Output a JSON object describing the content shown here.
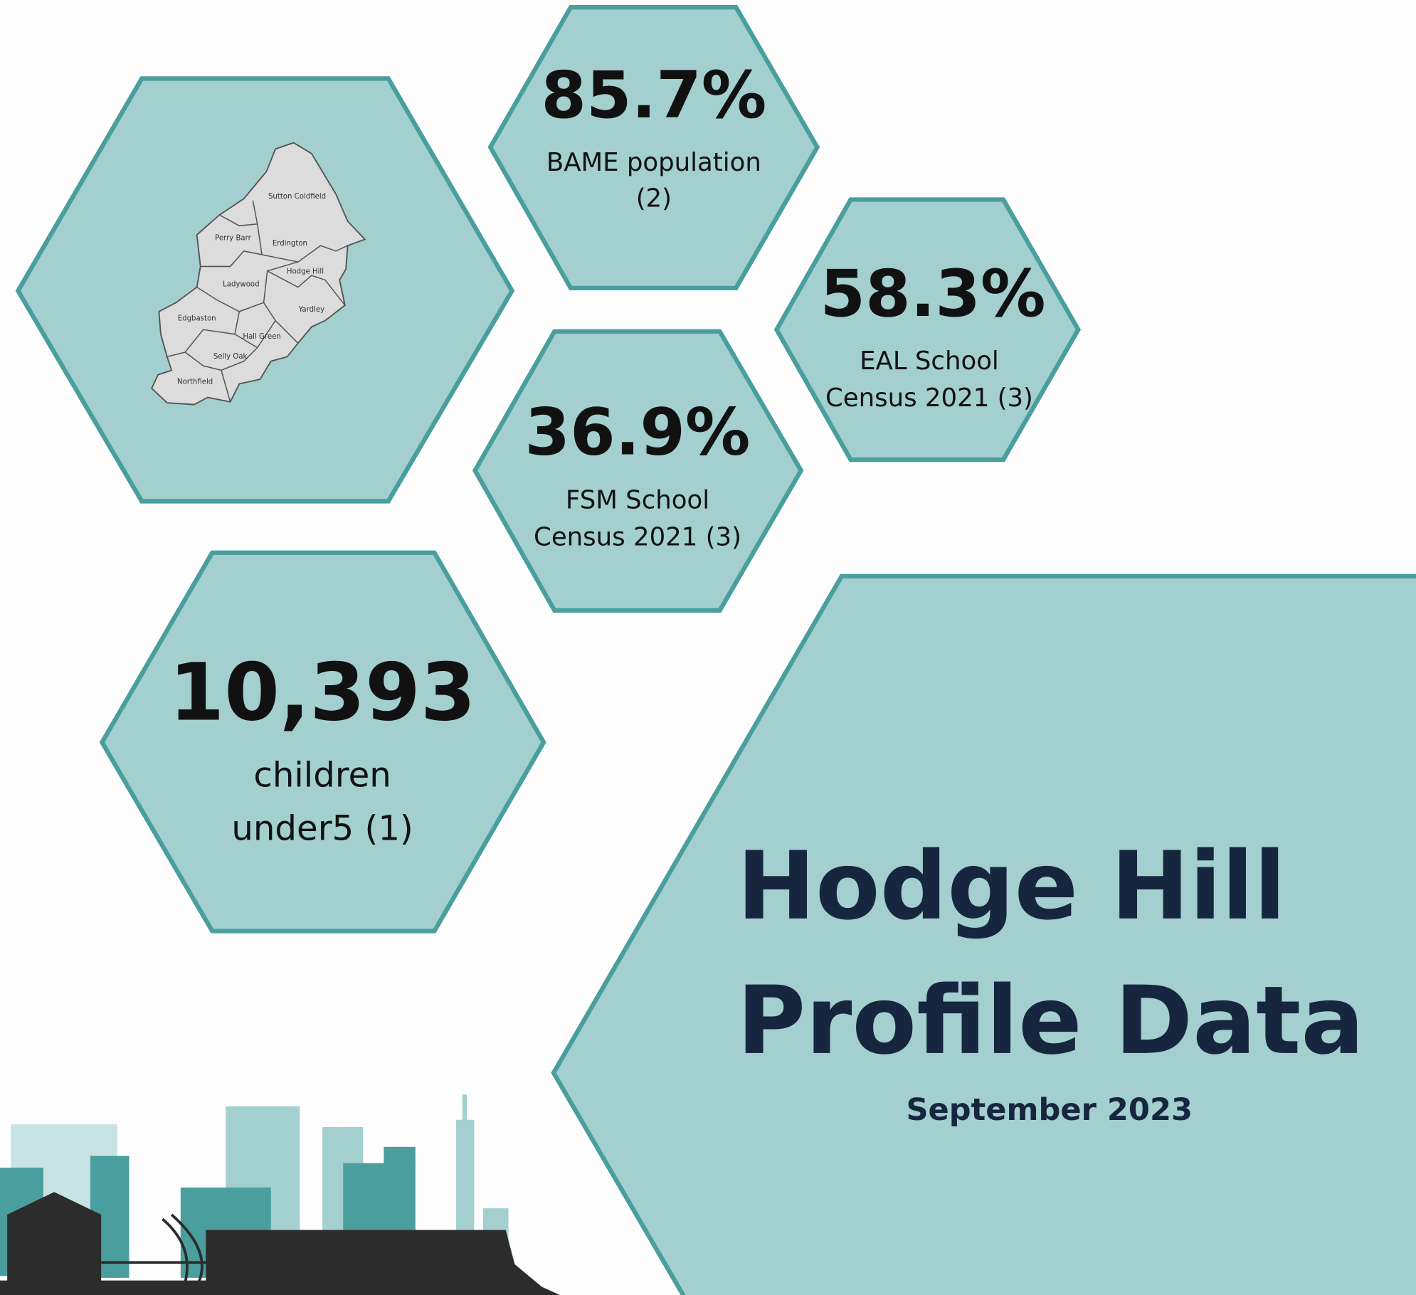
{
  "stats": [
    {
      "value": "85.7%",
      "label_lines": [
        "BAME population",
        "(2)"
      ]
    },
    {
      "value": "58.3%",
      "label_lines": [
        "EAL School",
        "Census 2021 (3)"
      ]
    },
    {
      "value": "36.9%",
      "label_lines": [
        "FSM School",
        "Census 2021 (3)"
      ]
    },
    {
      "value": "10,393",
      "label_lines": [
        "children",
        "under5 (1)"
      ]
    }
  ],
  "map": {
    "labels": [
      "Sutton Coldfield",
      "Perry Barr",
      "Erdington",
      "Hodge Hill",
      "Ladywood",
      "Yardley",
      "Edgbaston",
      "Hall Green",
      "Selly Oak",
      "Northfield"
    ]
  },
  "header": {
    "title_lines": [
      "Hodge Hill",
      "Profile Data"
    ],
    "subtitle": "September 2023"
  }
}
